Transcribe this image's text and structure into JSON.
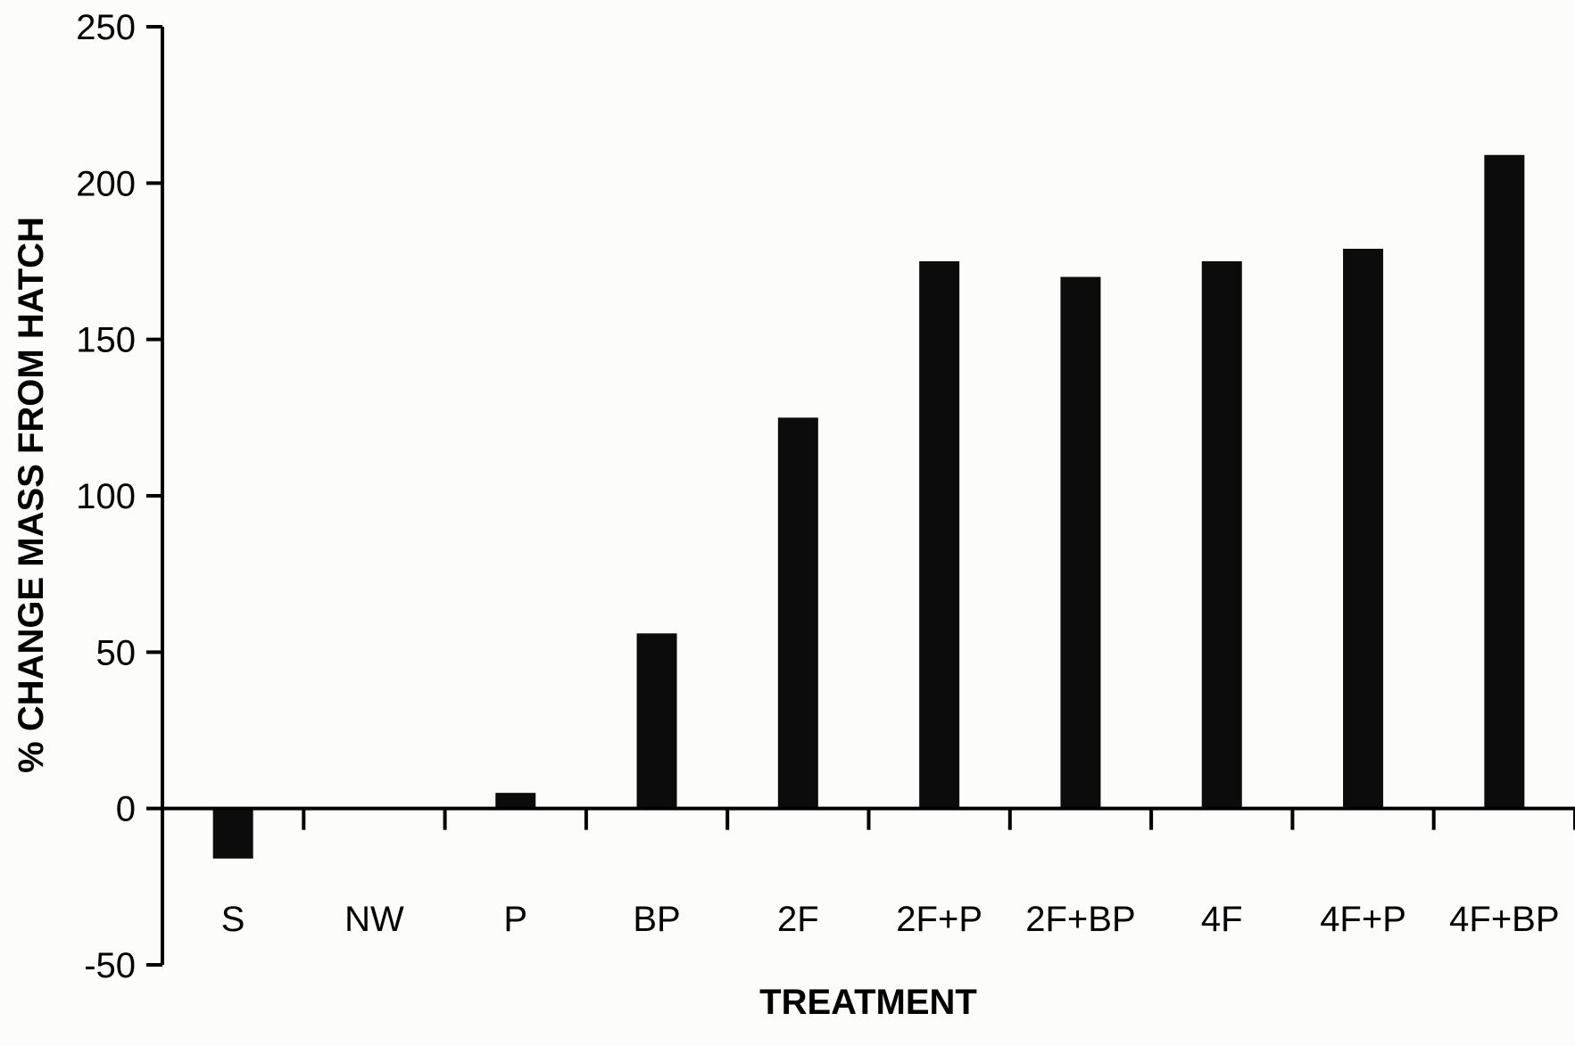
{
  "chart_data": {
    "type": "bar",
    "title": "",
    "xlabel": "TREATMENT",
    "ylabel": "% CHANGE MASS FROM HATCH",
    "categories": [
      "S",
      "NW",
      "P",
      "BP",
      "2F",
      "2F+P",
      "2F+BP",
      "4F",
      "4F+P",
      "4F+BP"
    ],
    "values": [
      -16,
      0,
      5,
      56,
      125,
      175,
      170,
      175,
      179,
      209
    ],
    "ylim": [
      -50,
      250
    ],
    "yticks": [
      -50,
      0,
      50,
      100,
      150,
      200,
      250
    ],
    "grid": false,
    "legend": "none",
    "bar_color": "#0c0c0c"
  }
}
